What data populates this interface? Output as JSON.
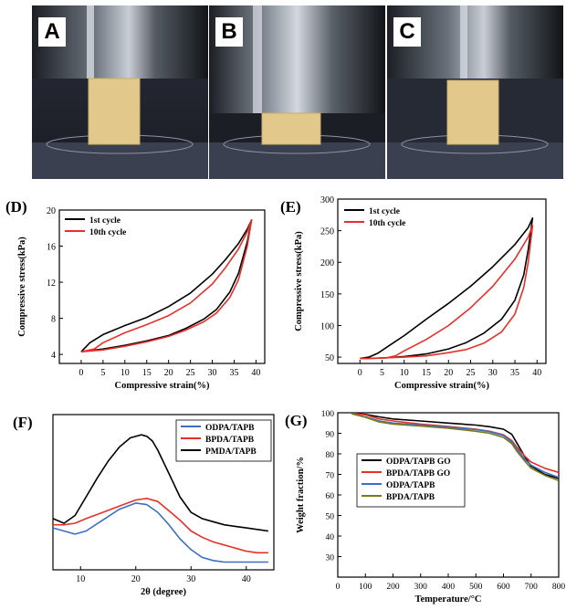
{
  "photos": [
    {
      "label": "A",
      "state": "uncompressed"
    },
    {
      "label": "B",
      "state": "compressed"
    },
    {
      "label": "C",
      "state": "recovered"
    }
  ],
  "colors": {
    "black": "#000000",
    "red": "#e8302a",
    "blue": "#3a6fc4",
    "olive": "#7c7a1c",
    "sponge": "#e3c88b"
  },
  "chart_data": [
    {
      "panel": "(D)",
      "type": "line",
      "xlabel": "Compressive strain(%)",
      "ylabel": "Compressive stress(kPa)",
      "xlim": [
        -5,
        42
      ],
      "ylim": [
        3,
        20
      ],
      "xticks": [
        0,
        5,
        10,
        15,
        20,
        25,
        30,
        35,
        40
      ],
      "yticks": [
        4,
        8,
        12,
        16,
        20
      ],
      "legend": "top-left",
      "series": [
        {
          "name": "1st cycle",
          "color": "#000000",
          "x": [
            0,
            2,
            5,
            10,
            15,
            20,
            25,
            30,
            33,
            36,
            38,
            39,
            38,
            36,
            34,
            31,
            28,
            24,
            20,
            15,
            10,
            5,
            0
          ],
          "y": [
            4.3,
            5.3,
            6.2,
            7.2,
            8.1,
            9.3,
            10.8,
            12.9,
            14.5,
            16.3,
            17.9,
            18.9,
            16.5,
            13.0,
            10.9,
            9.0,
            7.9,
            6.9,
            6.1,
            5.5,
            5.0,
            4.6,
            4.3
          ]
        },
        {
          "name": "10th cycle",
          "color": "#e8302a",
          "x": [
            0,
            3,
            5,
            10,
            15,
            20,
            25,
            30,
            33,
            36,
            38,
            39,
            38,
            36,
            34,
            31,
            28,
            24,
            20,
            15,
            10,
            5,
            0
          ],
          "y": [
            4.3,
            4.6,
            5.3,
            6.4,
            7.3,
            8.3,
            9.7,
            11.8,
            13.6,
            15.7,
            17.6,
            18.9,
            16.0,
            12.3,
            10.3,
            8.6,
            7.6,
            6.7,
            6.0,
            5.4,
            4.9,
            4.5,
            4.3
          ]
        }
      ]
    },
    {
      "panel": "(E)",
      "type": "line",
      "xlabel": "Compressive strain(%)",
      "ylabel": "Compressive stress(kPa)",
      "xlim": [
        -5,
        42
      ],
      "ylim": [
        40,
        300
      ],
      "xticks": [
        0,
        5,
        10,
        15,
        20,
        25,
        30,
        35,
        40
      ],
      "yticks": [
        50,
        100,
        150,
        200,
        250,
        300
      ],
      "legend": "top-left",
      "series": [
        {
          "name": "1st cycle",
          "color": "#000000",
          "x": [
            0,
            2,
            4,
            7,
            10,
            15,
            20,
            25,
            30,
            35,
            38,
            39,
            38,
            37,
            35,
            32,
            28,
            24,
            20,
            15,
            10,
            6,
            2,
            0
          ],
          "y": [
            48,
            50,
            56,
            70,
            84,
            110,
            135,
            162,
            193,
            228,
            255,
            270,
            220,
            180,
            140,
            110,
            88,
            73,
            63,
            55,
            51,
            49,
            48,
            48
          ]
        },
        {
          "name": "10th cycle",
          "color": "#e8302a",
          "x": [
            0,
            3,
            6,
            8,
            10,
            15,
            20,
            25,
            30,
            35,
            38,
            39,
            38,
            37,
            35,
            32,
            28,
            24,
            20,
            15,
            10,
            6,
            3,
            0
          ],
          "y": [
            48,
            48,
            49,
            52,
            60,
            78,
            100,
            128,
            162,
            205,
            240,
            258,
            200,
            160,
            118,
            90,
            72,
            62,
            57,
            52,
            50,
            49,
            48,
            48
          ]
        }
      ]
    },
    {
      "panel": "(F)",
      "type": "line",
      "xlabel": "2θ (degree)",
      "ylabel": "",
      "xlim": [
        5,
        45
      ],
      "ylim": [
        0,
        1
      ],
      "xticks": [
        10,
        20,
        30,
        40
      ],
      "yticks": [],
      "legend": "top-right",
      "series": [
        {
          "name": "ODPA/TAPB",
          "color": "#3a6fc4",
          "x": [
            5,
            7,
            9,
            11,
            14,
            17,
            20,
            22,
            24,
            26,
            28,
            30,
            32,
            34,
            36,
            38,
            40,
            42,
            44
          ],
          "y": [
            0.27,
            0.25,
            0.23,
            0.25,
            0.32,
            0.39,
            0.43,
            0.42,
            0.37,
            0.29,
            0.2,
            0.13,
            0.08,
            0.06,
            0.05,
            0.05,
            0.05,
            0.05,
            0.05
          ]
        },
        {
          "name": "BPDA/TAPB",
          "color": "#e8302a",
          "x": [
            5,
            7,
            9,
            11,
            14,
            17,
            20,
            22,
            24,
            26,
            28,
            30,
            32,
            34,
            36,
            38,
            40,
            42,
            44
          ],
          "y": [
            0.29,
            0.29,
            0.3,
            0.33,
            0.37,
            0.41,
            0.45,
            0.46,
            0.44,
            0.38,
            0.32,
            0.25,
            0.21,
            0.18,
            0.16,
            0.14,
            0.12,
            0.11,
            0.11
          ]
        },
        {
          "name": "PMDA/TAPB",
          "color": "#000000",
          "x": [
            5,
            7,
            9,
            11,
            13,
            15,
            17,
            19,
            21,
            22,
            23,
            24,
            26,
            28,
            30,
            32,
            34,
            36,
            38,
            40,
            42,
            44
          ],
          "y": [
            0.33,
            0.3,
            0.35,
            0.47,
            0.59,
            0.7,
            0.79,
            0.85,
            0.87,
            0.86,
            0.83,
            0.77,
            0.62,
            0.47,
            0.37,
            0.33,
            0.31,
            0.29,
            0.28,
            0.27,
            0.26,
            0.25
          ]
        }
      ]
    },
    {
      "panel": "(G)",
      "type": "line",
      "xlabel": "Temperature/°C",
      "ylabel": "Weight fraction/%",
      "xlim": [
        0,
        800
      ],
      "ylim": [
        20,
        100
      ],
      "xticks": [
        0,
        100,
        200,
        300,
        400,
        500,
        600,
        700,
        800
      ],
      "yticks": [
        30,
        40,
        50,
        60,
        70,
        80,
        90,
        100
      ],
      "legend": "center-left",
      "series": [
        {
          "name": "ODPA/TAPB GO",
          "color": "#000000",
          "x": [
            50,
            100,
            150,
            200,
            300,
            400,
            500,
            550,
            600,
            630,
            650,
            680,
            700,
            750,
            800
          ],
          "y": [
            99.8,
            99.2,
            98.0,
            97.0,
            96.0,
            95.0,
            94.0,
            93.2,
            92.0,
            89.5,
            85.0,
            78.0,
            74.0,
            70.0,
            68.0
          ]
        },
        {
          "name": "BPDA/TAPB GO",
          "color": "#e8302a",
          "x": [
            50,
            100,
            150,
            200,
            300,
            400,
            500,
            550,
            600,
            630,
            650,
            680,
            700,
            750,
            800
          ],
          "y": [
            99.8,
            99.0,
            97.0,
            96.0,
            94.5,
            93.3,
            92.0,
            91.0,
            89.3,
            86.5,
            83.0,
            78.5,
            76.0,
            73.0,
            71.0
          ]
        },
        {
          "name": "ODPA/TAPB",
          "color": "#3a6fc4",
          "x": [
            50,
            100,
            150,
            200,
            300,
            400,
            500,
            550,
            600,
            630,
            650,
            680,
            700,
            750,
            800
          ],
          "y": [
            99.5,
            98.0,
            96.0,
            95.0,
            94.0,
            93.0,
            91.8,
            90.8,
            89.0,
            85.8,
            82.0,
            77.0,
            74.5,
            71.0,
            68.5
          ]
        },
        {
          "name": "BPDA/TAPB",
          "color": "#7c7a1c",
          "x": [
            50,
            100,
            150,
            200,
            300,
            400,
            500,
            550,
            600,
            630,
            650,
            680,
            700,
            750,
            800
          ],
          "y": [
            99.5,
            97.8,
            95.5,
            94.5,
            93.5,
            92.5,
            91.0,
            90.0,
            88.0,
            85.0,
            81.0,
            76.0,
            73.0,
            69.5,
            67.0
          ]
        }
      ]
    }
  ]
}
